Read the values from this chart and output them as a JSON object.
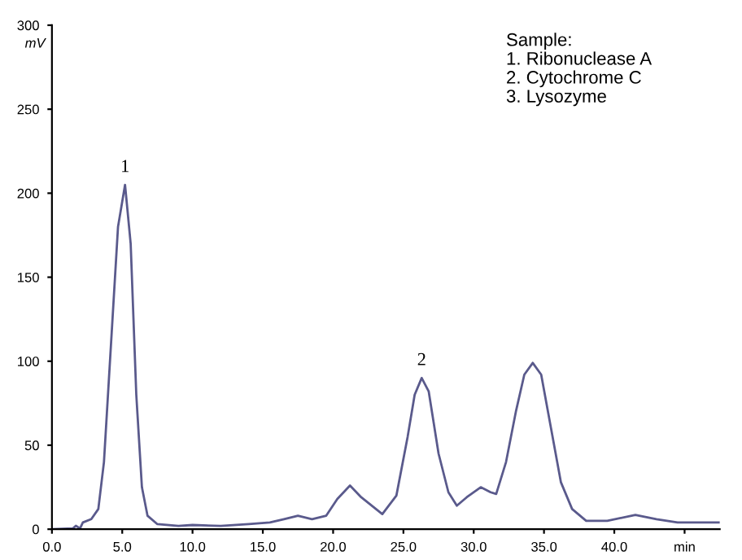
{
  "chart_data": {
    "type": "line",
    "ylabel": "mV",
    "x": [
      0,
      1.5,
      1.7,
      2,
      2.2,
      2.8,
      3.3,
      3.7,
      4.2,
      4.7,
      5.2,
      5.6,
      6.0,
      6.4,
      6.8,
      7.5,
      9,
      10,
      12,
      14,
      15.5,
      16.5,
      17.5,
      18.5,
      19.5,
      20.3,
      21.2,
      22,
      23.5,
      24.5,
      25.3,
      25.8,
      26.3,
      26.8,
      27.5,
      28.2,
      28.8,
      29.5,
      30.5,
      31.2,
      31.6,
      32.3,
      33.0,
      33.6,
      34.2,
      34.8,
      35.5,
      36.2,
      37,
      38,
      39.5,
      41.5,
      43,
      44.5,
      47.5
    ],
    "series": [
      {
        "color": "#5a5a8c",
        "values": [
          0,
          0.5,
          2,
          0.5,
          4,
          6,
          12,
          40,
          110,
          180,
          205,
          170,
          80,
          25,
          8,
          3,
          2,
          2.5,
          2,
          3,
          4,
          6,
          8,
          6,
          8,
          18,
          26,
          19,
          9,
          20,
          55,
          80,
          90,
          82,
          45,
          22,
          14,
          19,
          25,
          22,
          21,
          40,
          70,
          92,
          99,
          92,
          60,
          28,
          12,
          5,
          5,
          8.5,
          6,
          4,
          4
        ]
      }
    ],
    "xlim": [
      0,
      47.5
    ],
    "ylim": [
      0,
      300
    ],
    "xticks": [
      {
        "value": 0,
        "label": "0.0"
      },
      {
        "value": 5,
        "label": "5.0"
      },
      {
        "value": 10,
        "label": "10.0"
      },
      {
        "value": 15,
        "label": "15.0"
      },
      {
        "value": 20,
        "label": "20.0"
      },
      {
        "value": 25,
        "label": "25.0"
      },
      {
        "value": 30,
        "label": "30.0"
      },
      {
        "value": 35,
        "label": "35.0"
      },
      {
        "value": 40,
        "label": "40.0"
      },
      {
        "value": 45,
        "label": "min"
      }
    ],
    "yticks": [
      0,
      50,
      100,
      150,
      200,
      250,
      300
    ],
    "grid": false,
    "legend": false,
    "annotations": [
      {
        "text": "1",
        "x": 5.2,
        "y": 205
      },
      {
        "text": "2",
        "x": 26.3,
        "y": 90
      },
      "Sample:\n1. Ribonuclease A\n2. Cytochrome C\n3. Lysozyme"
    ]
  }
}
